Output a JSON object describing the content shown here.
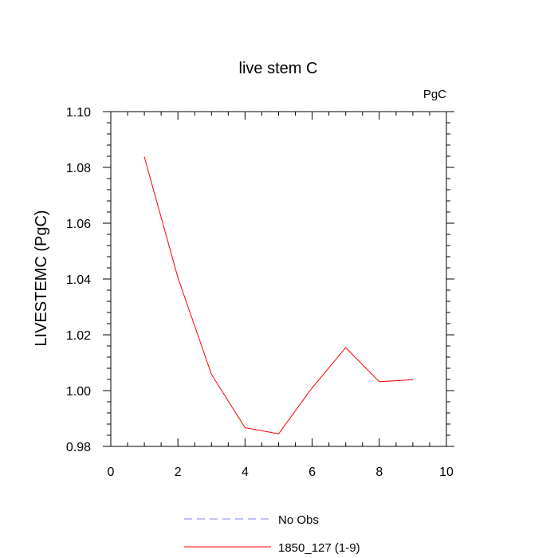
{
  "chart_data": {
    "type": "line",
    "title": "live stem C",
    "units_label": "PgC",
    "ylabel": "LIVESTEMC  (PgC)",
    "xlabel": "",
    "xlim": [
      0,
      10
    ],
    "ylim": [
      0.98,
      1.1
    ],
    "x_ticks": [
      0,
      2,
      4,
      6,
      8,
      10
    ],
    "x_tick_labels": [
      "0",
      "2",
      "4",
      "6",
      "8",
      "10"
    ],
    "y_ticks": [
      0.98,
      1.0,
      1.02,
      1.04,
      1.06,
      1.08,
      1.1
    ],
    "y_tick_labels": [
      "0.98",
      "1.00",
      "1.02",
      "1.04",
      "1.06",
      "1.08",
      "1.10"
    ],
    "grid": false,
    "legend_position": "bottom",
    "series": [
      {
        "name": "No Obs",
        "style": "dashed",
        "color": "#8080ff",
        "x": [],
        "y": []
      },
      {
        "name": "1850_127 (1-9)",
        "style": "solid",
        "color": "#ff0000",
        "x": [
          1,
          2,
          3,
          4,
          5,
          6,
          7,
          8,
          9
        ],
        "y": [
          1.0837,
          1.0405,
          1.0058,
          0.9867,
          0.9845,
          1.001,
          1.0154,
          1.0032,
          1.0039
        ]
      }
    ]
  }
}
